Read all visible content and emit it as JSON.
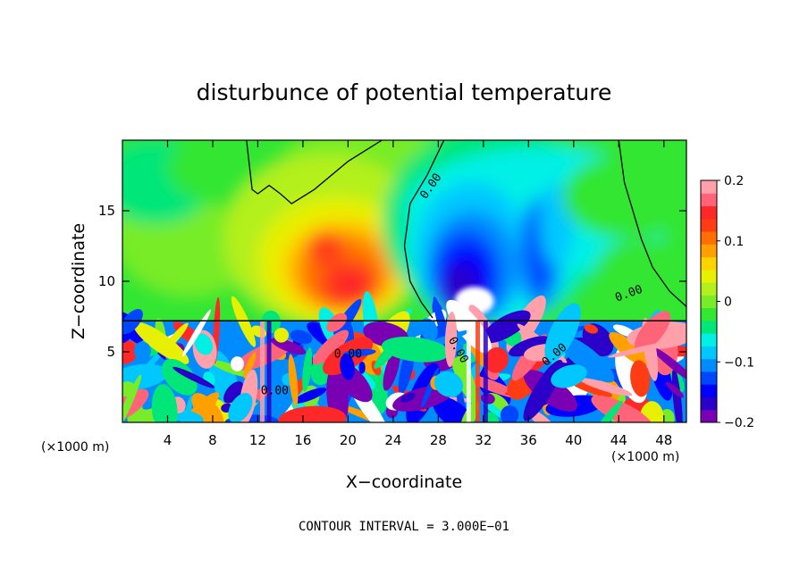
{
  "chart_data": {
    "type": "heatmap",
    "title": "disturbunce of potential temperature",
    "xlabel": "X−coordinate",
    "ylabel": "Z−coordinate",
    "x_unit": "(×1000 m)",
    "x_unit_right": "(×1000 m)",
    "footer": "CONTOUR INTERVAL = 3.000E−01",
    "xlim": [
      0,
      50
    ],
    "ylim": [
      0,
      20
    ],
    "x_ticks": [
      4,
      8,
      12,
      16,
      20,
      24,
      28,
      32,
      36,
      40,
      44,
      48
    ],
    "y_ticks": [
      5,
      10,
      15
    ],
    "colorbar": {
      "range": [
        -0.2,
        0.2
      ],
      "tick_labels": [
        "0.2",
        "0.1",
        "0",
        "−0.1",
        "−0.2"
      ],
      "tick_values": [
        0.2,
        0.1,
        0,
        -0.1,
        -0.2
      ],
      "colors": [
        "#7a00b4",
        "#2b00c8",
        "#0000ff",
        "#0046ff",
        "#008cff",
        "#00c8ff",
        "#00f0e6",
        "#00e678",
        "#32e632",
        "#78ec28",
        "#b4f01e",
        "#e6f000",
        "#ffd200",
        "#ffa000",
        "#ff6e00",
        "#ff3c14",
        "#ff2828",
        "#ff6478",
        "#ffa0aa"
      ]
    },
    "contour_labels": [
      "0.00",
      "0.00",
      "0.00",
      "0.00",
      "0.00",
      "0.00"
    ],
    "lower_layer_top_z": 7.2
  }
}
